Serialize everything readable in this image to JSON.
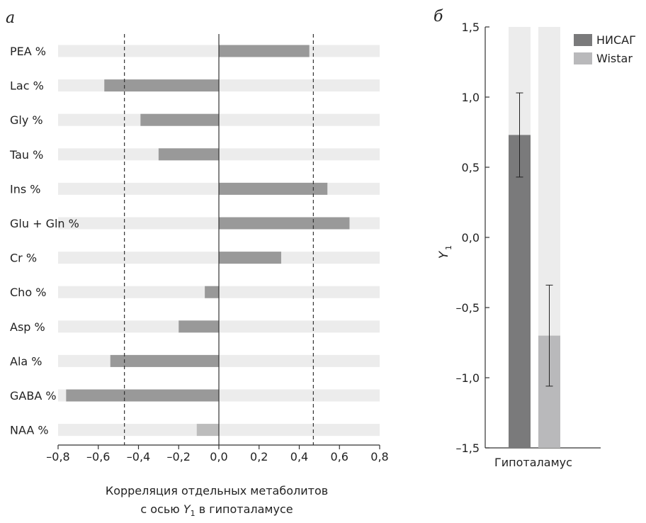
{
  "chart_data": [
    {
      "panel_label": "а",
      "type": "bar",
      "orientation": "horizontal",
      "categories": [
        "PEA %",
        "Lac %",
        "Gly %",
        "Tau %",
        "Ins %",
        "Glu + Gln %",
        "Cr %",
        "Cho %",
        "Asp %",
        "Ala %",
        "GABA %",
        "NAA %"
      ],
      "values": [
        0.45,
        -0.57,
        -0.39,
        -0.3,
        0.54,
        0.65,
        0.31,
        -0.07,
        -0.2,
        -0.54,
        -0.76,
        -0.11
      ],
      "bar_colors": [
        "#999999",
        "#999999",
        "#999999",
        "#999999",
        "#999999",
        "#999999",
        "#999999",
        "#999999",
        "#999999",
        "#999999",
        "#999999",
        "#bcbcbc"
      ],
      "xlim": [
        -0.8,
        0.8
      ],
      "xticks": [
        -0.8,
        -0.6,
        -0.4,
        -0.2,
        0.0,
        0.2,
        0.4,
        0.6,
        0.8
      ],
      "xtick_labels": [
        "–0,8",
        "–0,6",
        "–0,4",
        "–0,2",
        "0,0",
        "0,2",
        "0,4",
        "0,6",
        "0,8"
      ],
      "threshold_lines": [
        -0.47,
        0.47
      ],
      "caption_line1": "Корреляция отдельных метаболитов",
      "caption_line2_prefix": "с осью ",
      "caption_var": "Y",
      "caption_sub": "1",
      "caption_line2_suffix": " в гипоталамусе"
    },
    {
      "panel_label": "б",
      "type": "bar",
      "categories": [
        "Гипоталамус"
      ],
      "series": [
        {
          "name": "НИСАГ",
          "values": [
            0.73
          ],
          "error": [
            0.3
          ],
          "color": "#7a7a7b"
        },
        {
          "name": "Wistar",
          "values": [
            -0.7
          ],
          "error": [
            0.36
          ],
          "color": "#b9b9bb"
        }
      ],
      "ylim": [
        -1.5,
        1.5
      ],
      "yticks": [
        -1.5,
        -1.0,
        -0.5,
        0.0,
        0.5,
        1.0,
        1.5
      ],
      "ytick_labels": [
        "–1,5",
        "–1,0",
        "–0,5",
        "0,0",
        "0,5",
        "1,0",
        "1,5"
      ],
      "ylabel_var": "Y",
      "ylabel_sub": "1",
      "legend_position": "top-right"
    }
  ],
  "colors": {
    "background_bar": "#ececec",
    "axis": "#333333",
    "text": "#222222"
  }
}
